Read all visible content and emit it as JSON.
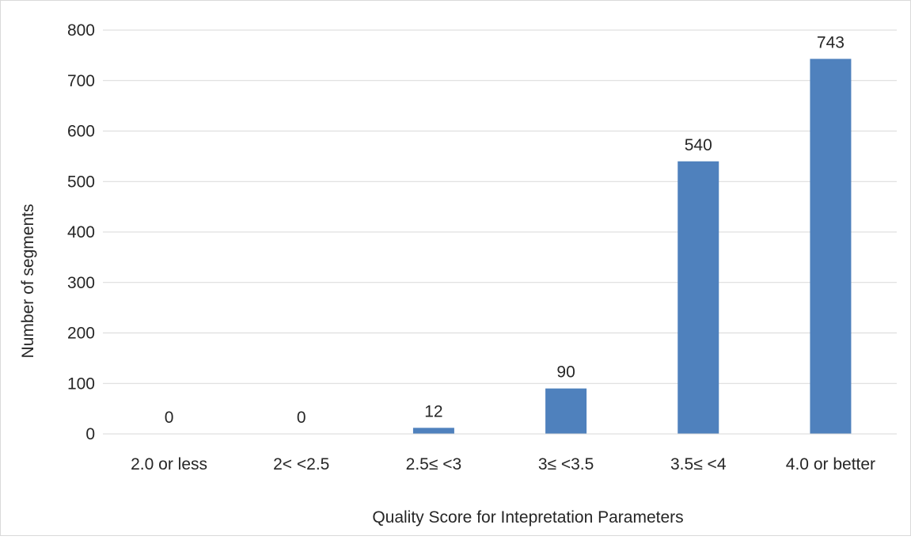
{
  "chart_data": {
    "type": "bar",
    "title": "",
    "xlabel": "Quality Score for Intepretation Parameters",
    "ylabel": "Number of segments",
    "categories": [
      "2.0 or less",
      "2<  <2.5",
      "2.5≤  <3",
      "3≤  <3.5",
      "3.5≤  <4",
      "4.0 or better"
    ],
    "series": [
      {
        "values": [
          0,
          0,
          12,
          90,
          540,
          743
        ],
        "color": "#4f81bd"
      }
    ],
    "data_labels": [
      "0",
      "0",
      "12",
      "90",
      "540",
      "743"
    ],
    "ylim": [
      0,
      800
    ],
    "yticks": [
      0,
      100,
      200,
      300,
      400,
      500,
      600,
      700,
      800
    ],
    "ytick_labels": [
      "0",
      "100",
      "200",
      "300",
      "400",
      "500",
      "600",
      "700",
      "800"
    ],
    "grid": true,
    "legend": "none"
  }
}
